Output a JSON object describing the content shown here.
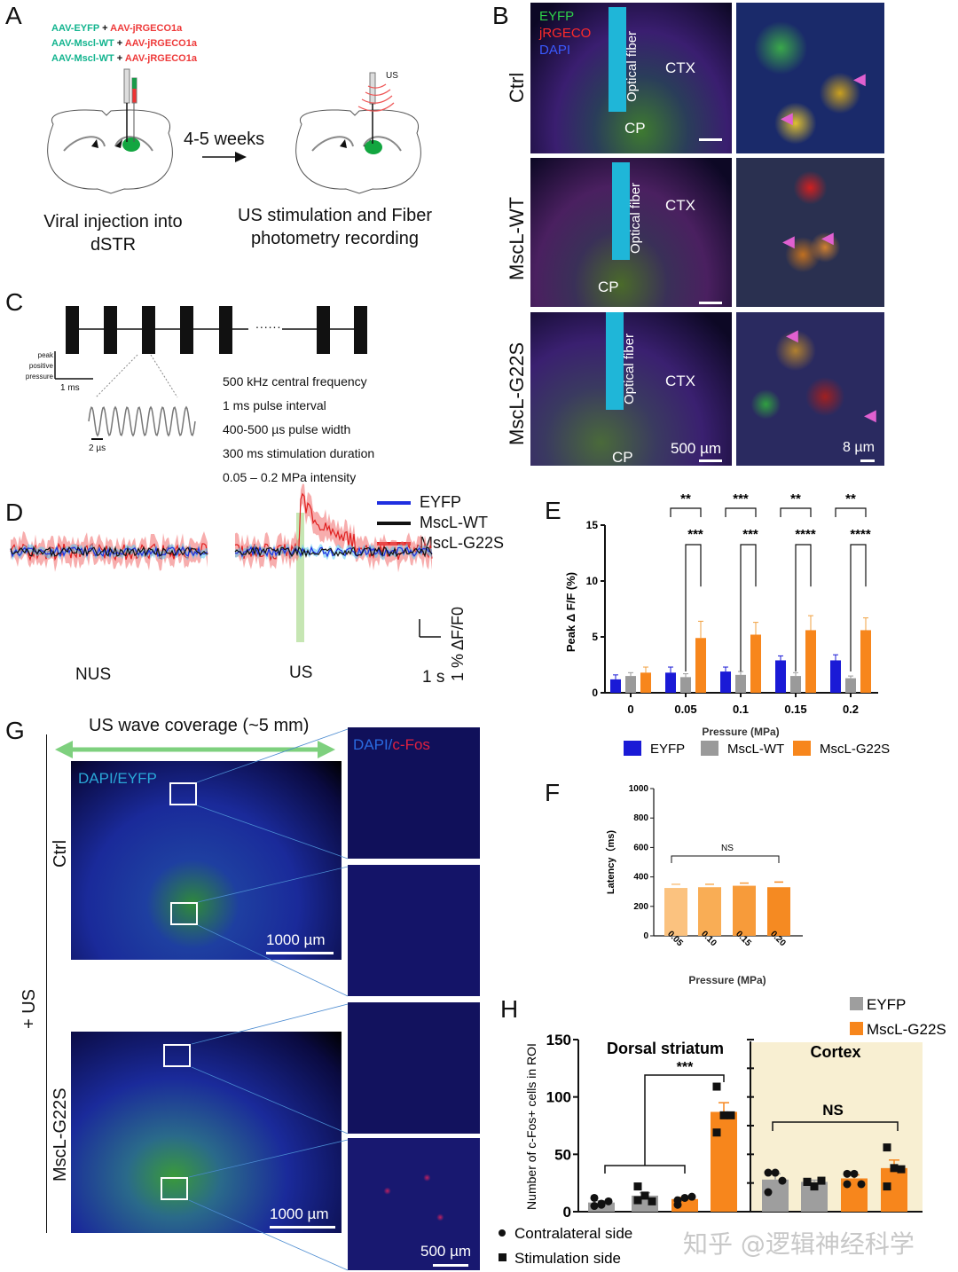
{
  "panels": {
    "A": {
      "label": "A",
      "constructs": [
        {
          "green": "AAV-EYFP",
          "plus": "+",
          "red": "AAV-jRGECO1a"
        },
        {
          "green": "AAV-Mscl-WT",
          "plus": "+",
          "red": "AAV-jRGECO1a"
        },
        {
          "green": "AAV-Mscl-WT",
          "plus": "+",
          "red": "AAV-jRGECO1a"
        }
      ],
      "interval": "4-5 weeks",
      "us_label": "US",
      "left_caption": [
        "Viral injection into",
        "dSTR"
      ],
      "right_caption": [
        "US stimulation and Fiber",
        "photometry recording"
      ]
    },
    "B": {
      "label": "B",
      "legend": {
        "eyfp": "EYFP",
        "jrgeco": "jRGECO",
        "dapi": "DAPI"
      },
      "rows": [
        "Ctrl",
        "MscL-WT",
        "MscL-G22S"
      ],
      "fiber": "Optical fiber",
      "ctx": "CTX",
      "cp": "CP",
      "scale_left": "500 µm",
      "scale_right": "8 µm"
    },
    "C": {
      "label": "C",
      "scale_y": [
        "peak",
        "positive",
        "pressure"
      ],
      "scale_x": "1 ms",
      "scale_wave": "2 µs",
      "params": [
        "500 kHz central frequency",
        "1 ms pulse interval",
        "400-500 µs pulse width",
        "300 ms stimulation duration",
        "0.05 – 0.2 MPa intensity"
      ],
      "dots": "......"
    },
    "D": {
      "label": "D",
      "legend": [
        {
          "name": "EYFP",
          "color": "#1f2fe0"
        },
        {
          "name": "MscL-WT",
          "color": "#111111"
        },
        {
          "name": "MscL-G22S",
          "color": "#e01f1f"
        }
      ],
      "nus": "NUS",
      "us": "US",
      "scale_x": "1 s",
      "scale_y": "1 % ΔF/F0"
    },
    "G": {
      "label": "G",
      "coverage": "US wave coverage (~5 mm)",
      "stain_left": "DAPI/EYFP",
      "stain_right_a": "DAPI/",
      "stain_right_b": "c-Fos",
      "rows": [
        "Ctrl",
        "MscL-G22S"
      ],
      "group": "+ US",
      "scale_big": "1000 µm",
      "scale_small": "500 µm"
    },
    "H": {
      "label": "H",
      "legend_markers": [
        "Contralateral side",
        "Stimulation side"
      ],
      "watermark": "知乎 @逻辑神经科学"
    }
  },
  "chart_data": [
    {
      "id": "E",
      "label": "E",
      "type": "bar",
      "ylabel": "Peak Δ F/F (%)",
      "xlabel": "Pressure (MPa)",
      "categories": [
        "0",
        "0.05",
        "0.1",
        "0.15",
        "0.2"
      ],
      "ylim": [
        0,
        15
      ],
      "yticks": [
        0,
        5,
        10,
        15
      ],
      "series": [
        {
          "name": "EYFP",
          "color": "#1a1ad6",
          "values": [
            1.2,
            1.8,
            1.9,
            2.9,
            2.9
          ],
          "errors": [
            0.4,
            0.5,
            0.4,
            0.4,
            0.5
          ]
        },
        {
          "name": "MscL-WT",
          "color": "#9a9a9a",
          "values": [
            1.5,
            1.4,
            1.6,
            1.5,
            1.3
          ],
          "errors": [
            0.3,
            0.3,
            0.3,
            0.3,
            0.2
          ]
        },
        {
          "name": "MscL-G22S",
          "color": "#f7861c",
          "values": [
            1.8,
            4.9,
            5.2,
            5.6,
            5.6
          ],
          "errors": [
            0.5,
            1.5,
            1.1,
            1.3,
            1.1
          ]
        }
      ],
      "annotations": [
        {
          "category": "0.05",
          "top": "**",
          "bottom": "***"
        },
        {
          "category": "0.1",
          "top": "***",
          "bottom": "***"
        },
        {
          "category": "0.15",
          "top": "**",
          "bottom": "****"
        },
        {
          "category": "0.2",
          "top": "**",
          "bottom": "****"
        }
      ],
      "legend_position": "bottom"
    },
    {
      "id": "F",
      "label": "F",
      "type": "bar",
      "ylabel": "Latency（ms)",
      "xlabel": "Pressure (MPa)",
      "categories": [
        "0.05",
        "0.10",
        "0.15",
        "0.20"
      ],
      "values": [
        325,
        330,
        340,
        330
      ],
      "errors": [
        25,
        20,
        18,
        35
      ],
      "colors": [
        "#fbc27f",
        "#f9ad55",
        "#f79b3a",
        "#f58a22"
      ],
      "ylim": [
        0,
        1000
      ],
      "yticks": [
        0,
        200,
        400,
        600,
        800,
        1000
      ],
      "annotation": "NS"
    },
    {
      "id": "H",
      "label": "H",
      "type": "bar",
      "ylabel": "Number of c-Fos+ cells in ROI",
      "ylim": [
        0,
        150
      ],
      "yticks": [
        0,
        50,
        100,
        150
      ],
      "groups": [
        {
          "title": "Dorsal striatum",
          "annotation": "***",
          "bars": [
            {
              "series": "EYFP",
              "side": "Contralateral side",
              "value": 8,
              "error": 1.5,
              "points": [
                5,
                7,
                9,
                12,
                6
              ]
            },
            {
              "series": "EYFP",
              "side": "Stimulation side",
              "value": 14,
              "error": 2.5,
              "points": [
                22,
                14,
                9,
                10
              ]
            },
            {
              "series": "MscL-G22S",
              "side": "Contralateral side",
              "value": 11,
              "error": 1.5,
              "points": [
                6,
                12,
                13,
                10
              ]
            },
            {
              "series": "MscL-G22S",
              "side": "Stimulation side",
              "value": 87,
              "error": 8,
              "points": [
                109,
                84,
                84,
                69
              ]
            }
          ]
        },
        {
          "title": "Cortex",
          "annotation": "NS",
          "bars": [
            {
              "series": "EYFP",
              "side": "Contralateral side",
              "value": 28,
              "error": 5,
              "points": [
                34,
                34,
                27,
                17
              ]
            },
            {
              "series": "EYFP",
              "side": "Stimulation side",
              "value": 26,
              "error": 1.5,
              "points": [
                26,
                22,
                27,
                26
              ]
            },
            {
              "series": "MscL-G22S",
              "side": "Contralateral side",
              "value": 29,
              "error": 3,
              "points": [
                33,
                33,
                24,
                24
              ]
            },
            {
              "series": "MscL-G22S",
              "side": "Stimulation side",
              "value": 38,
              "error": 7,
              "points": [
                56,
                38,
                37,
                22
              ]
            }
          ]
        }
      ],
      "legend": [
        {
          "name": "EYFP",
          "color": "#9e9e9e"
        },
        {
          "name": "MscL-G22S",
          "color": "#f7861c"
        }
      ],
      "cortex_bg": "#f8efd2"
    }
  ]
}
